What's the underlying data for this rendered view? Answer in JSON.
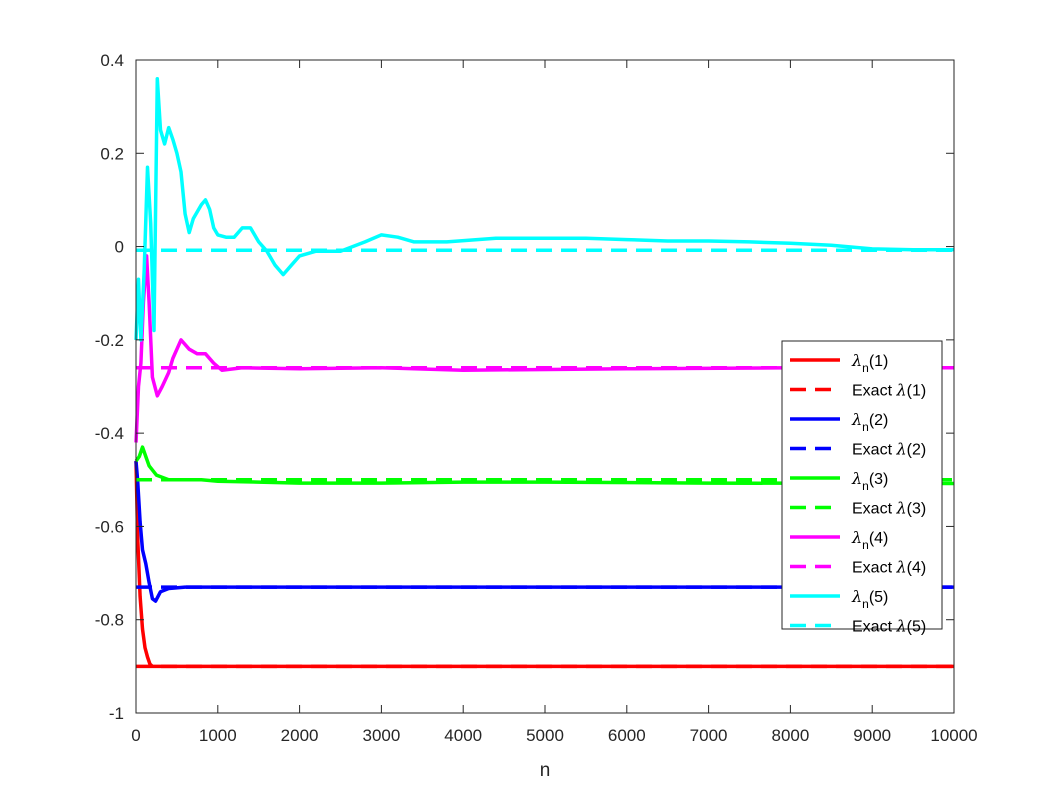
{
  "chart_data": {
    "type": "line",
    "title": "",
    "xlabel": "n",
    "ylabel": "",
    "xlim": [
      0,
      10000
    ],
    "ylim": [
      -1,
      0.4
    ],
    "xticks": [
      0,
      1000,
      2000,
      3000,
      4000,
      5000,
      6000,
      7000,
      8000,
      9000,
      10000
    ],
    "xtick_labels": [
      "0",
      "1000",
      "2000",
      "3000",
      "4000",
      "5000",
      "6000",
      "7000",
      "8000",
      "9000",
      "10000"
    ],
    "yticks": [
      -1,
      -0.8,
      -0.6,
      -0.4,
      -0.2,
      0,
      0.2,
      0.4
    ],
    "ytick_labels": [
      "-1",
      "-0.8",
      "-0.6",
      "-0.4",
      "-0.2",
      "0",
      "0.2",
      "0.4"
    ],
    "grid": false,
    "legend_position": "right",
    "series": [
      {
        "name": "λn(1)",
        "legend_main": "λ",
        "legend_sub": "n",
        "legend_tail": "(1)",
        "color": "#ff0000",
        "style": "solid",
        "x": [
          0,
          20,
          50,
          80,
          110,
          140,
          170,
          200,
          300,
          500,
          1000,
          3000,
          6000,
          10000
        ],
        "y": [
          -0.46,
          -0.62,
          -0.75,
          -0.82,
          -0.86,
          -0.88,
          -0.895,
          -0.9,
          -0.9,
          -0.9,
          -0.9,
          -0.9,
          -0.9,
          -0.9
        ]
      },
      {
        "name": "Exact λ(1)",
        "legend_main": "Exact ",
        "legend_sym": "λ",
        "legend_tail": "(1)",
        "color": "#ff0000",
        "style": "dashed",
        "x": [
          0,
          10000
        ],
        "y": [
          -0.9,
          -0.9
        ]
      },
      {
        "name": "λn(2)",
        "legend_main": "λ",
        "legend_sub": "n",
        "legend_tail": "(2)",
        "color": "#0000ff",
        "style": "solid",
        "x": [
          0,
          20,
          50,
          80,
          120,
          160,
          200,
          240,
          300,
          400,
          600,
          1000,
          2000,
          4000,
          7000,
          10000
        ],
        "y": [
          -0.46,
          -0.5,
          -0.59,
          -0.65,
          -0.68,
          -0.72,
          -0.755,
          -0.76,
          -0.74,
          -0.733,
          -0.73,
          -0.73,
          -0.73,
          -0.73,
          -0.73,
          -0.73
        ]
      },
      {
        "name": "Exact λ(2)",
        "legend_main": "Exact ",
        "legend_sym": "λ",
        "legend_tail": "(2)",
        "color": "#0000ff",
        "style": "dashed",
        "x": [
          0,
          10000
        ],
        "y": [
          -0.73,
          -0.73
        ]
      },
      {
        "name": "λn(3)",
        "legend_main": "λ",
        "legend_sub": "n",
        "legend_tail": "(3)",
        "color": "#00ff00",
        "style": "solid",
        "x": [
          0,
          40,
          80,
          120,
          160,
          250,
          400,
          600,
          800,
          1000,
          1500,
          2000,
          3000,
          4000,
          5000,
          7000,
          10000
        ],
        "y": [
          -0.46,
          -0.45,
          -0.43,
          -0.45,
          -0.47,
          -0.49,
          -0.5,
          -0.5,
          -0.5,
          -0.503,
          -0.505,
          -0.507,
          -0.507,
          -0.505,
          -0.505,
          -0.507,
          -0.508
        ]
      },
      {
        "name": "Exact λ(3)",
        "legend_main": "Exact ",
        "legend_sym": "λ",
        "legend_tail": "(3)",
        "color": "#00ff00",
        "style": "dashed",
        "x": [
          0,
          10000
        ],
        "y": [
          -0.5,
          -0.5
        ]
      },
      {
        "name": "λn(4)",
        "legend_main": "λ",
        "legend_sub": "n",
        "legend_tail": "(4)",
        "color": "#ff00ff",
        "style": "solid",
        "x": [
          0,
          30,
          60,
          90,
          130,
          160,
          200,
          260,
          320,
          400,
          450,
          550,
          650,
          750,
          850,
          950,
          1050,
          1300,
          2000,
          3000,
          4000,
          6000,
          8000,
          10000
        ],
        "y": [
          -0.42,
          -0.3,
          -0.25,
          -0.12,
          -0.02,
          -0.12,
          -0.28,
          -0.32,
          -0.3,
          -0.27,
          -0.24,
          -0.2,
          -0.22,
          -0.23,
          -0.23,
          -0.25,
          -0.265,
          -0.26,
          -0.262,
          -0.26,
          -0.265,
          -0.262,
          -0.26,
          -0.26
        ]
      },
      {
        "name": "Exact λ(4)",
        "legend_main": "Exact ",
        "legend_sym": "λ",
        "legend_tail": "(4)",
        "color": "#ff00ff",
        "style": "dashed",
        "x": [
          0,
          10000
        ],
        "y": [
          -0.26,
          -0.26
        ]
      },
      {
        "name": "λn(5)",
        "legend_main": "λ",
        "legend_sub": "n",
        "legend_tail": "(5)",
        "color": "#00ffff",
        "style": "solid",
        "x": [
          0,
          30,
          60,
          100,
          140,
          180,
          220,
          260,
          300,
          350,
          400,
          450,
          500,
          550,
          600,
          650,
          700,
          800,
          850,
          900,
          950,
          1000,
          1100,
          1200,
          1300,
          1400,
          1500,
          1600,
          1700,
          1800,
          1900,
          2000,
          2200,
          2500,
          2800,
          3000,
          3200,
          3400,
          3800,
          4400,
          5000,
          5500,
          6000,
          6500,
          7000,
          7500,
          8000,
          8500,
          9000,
          9500,
          10000
        ],
        "y": [
          -0.2,
          -0.07,
          -0.2,
          -0.05,
          0.17,
          0.05,
          -0.18,
          0.36,
          0.25,
          0.22,
          0.255,
          0.23,
          0.2,
          0.16,
          0.07,
          0.03,
          0.06,
          0.09,
          0.1,
          0.08,
          0.04,
          0.025,
          0.02,
          0.02,
          0.04,
          0.04,
          0.01,
          -0.01,
          -0.04,
          -0.06,
          -0.04,
          -0.02,
          -0.01,
          -0.01,
          0.01,
          0.025,
          0.02,
          0.01,
          0.01,
          0.018,
          0.018,
          0.018,
          0.015,
          0.012,
          0.012,
          0.01,
          0.007,
          0.003,
          -0.005,
          -0.007,
          -0.007
        ]
      },
      {
        "name": "Exact λ(5)",
        "legend_main": "Exact ",
        "legend_sym": "λ",
        "legend_tail": "(5)",
        "color": "#00ffff",
        "style": "dashed",
        "x": [
          0,
          10000
        ],
        "y": [
          -0.008,
          -0.008
        ]
      }
    ]
  }
}
